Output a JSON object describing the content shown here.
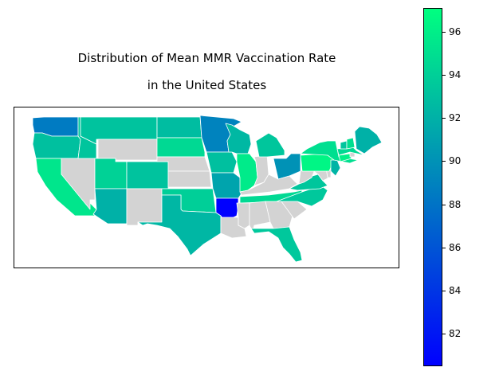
{
  "title": {
    "line1": "Distribution of Mean MMR Vaccination Rate",
    "line2": "in the United States"
  },
  "colorbar": {
    "colormap": "winter",
    "min": 80.5,
    "max": 97.1,
    "low_color": "#0000ff",
    "high_color": "#00ff80",
    "ticks": [
      "82",
      "84",
      "86",
      "88",
      "90",
      "92",
      "94",
      "96"
    ]
  },
  "no_data_color": "#d3d3d3",
  "chart_data": {
    "type": "choropleth",
    "title": "Distribution of Mean MMR Vaccination Rate in the United States",
    "value_range": [
      80.5,
      97.1
    ],
    "states_with_data": [
      {
        "state": "WA",
        "value": 88.5
      },
      {
        "state": "OR",
        "value": 93.0
      },
      {
        "state": "CA",
        "value": 95.5
      },
      {
        "state": "ID",
        "value": 93.3
      },
      {
        "state": "MT",
        "value": 93.2
      },
      {
        "state": "ND",
        "value": 92.8
      },
      {
        "state": "SD",
        "value": 94.6
      },
      {
        "state": "MN",
        "value": 89.0
      },
      {
        "state": "UT",
        "value": 94.2
      },
      {
        "state": "CO",
        "value": 93.2
      },
      {
        "state": "AZ",
        "value": 92.0
      },
      {
        "state": "TX",
        "value": 92.4
      },
      {
        "state": "OK",
        "value": 94.0
      },
      {
        "state": "AR",
        "value": 80.5
      },
      {
        "state": "MO",
        "value": 91.2
      },
      {
        "state": "IA",
        "value": 93.0
      },
      {
        "state": "WI",
        "value": 92.5
      },
      {
        "state": "IL",
        "value": 95.8
      },
      {
        "state": "MI",
        "value": 93.4
      },
      {
        "state": "OH",
        "value": 90.0
      },
      {
        "state": "TN",
        "value": 94.6
      },
      {
        "state": "NC",
        "value": 93.5
      },
      {
        "state": "VA",
        "value": 93.4
      },
      {
        "state": "PA",
        "value": 96.5
      },
      {
        "state": "NY",
        "value": 95.0
      },
      {
        "state": "NJ",
        "value": 92.2
      },
      {
        "state": "VT",
        "value": 93.3
      },
      {
        "state": "NH",
        "value": 95.0
      },
      {
        "state": "MA",
        "value": 94.6
      },
      {
        "state": "CT",
        "value": 96.1
      },
      {
        "state": "ME",
        "value": 92.0
      },
      {
        "state": "FL",
        "value": 93.5
      }
    ],
    "states_no_data": [
      "NV",
      "WY",
      "NE",
      "KS",
      "NM",
      "LA",
      "MS",
      "AL",
      "GA",
      "SC",
      "KY",
      "IN",
      "WV",
      "MD",
      "DE",
      "RI"
    ]
  }
}
